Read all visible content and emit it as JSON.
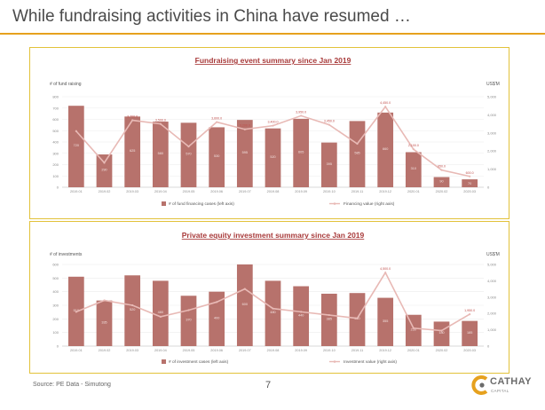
{
  "page": {
    "title": "While fundraising activities in China have resumed …",
    "source": "Source: PE Data - Simutong",
    "page_number": "7",
    "logo_text": "CATHAY",
    "logo_sub": "CAPITAL"
  },
  "colors": {
    "accent": "#e6a11e",
    "panel_border": "#e2c23a",
    "bar": "#b7726c",
    "line": "#e8b9b5",
    "chart_title": "#a83a3a"
  },
  "chart_data": [
    {
      "type": "bar",
      "title": "Fundraising event summary since Jan 2019",
      "ylabel_left": "# of fund raising",
      "ylabel_right": "US$'M",
      "categories": [
        "2019.01",
        "2019.02",
        "2019.03",
        "2019.04",
        "2019.05",
        "2019.06",
        "2019.07",
        "2019.08",
        "2019.09",
        "2019.10",
        "2019.11",
        "2019.12",
        "2020.01",
        "2020.02",
        "2020.03"
      ],
      "ylim_left": [
        0,
        800
      ],
      "ylim_right": [
        0,
        5000
      ],
      "left_ticks": [
        0,
        100,
        200,
        300,
        400,
        500,
        600,
        700,
        800
      ],
      "right_ticks": [
        0,
        1000,
        2000,
        3000,
        4000,
        5000
      ],
      "legend_position": "bottom",
      "series": [
        {
          "name": "# of fund financing cases (left axis)",
          "type": "bar",
          "axis": "left",
          "values": [
            720,
            290,
            625,
            580,
            570,
            530,
            595,
            520,
            605,
            395,
            585,
            660,
            310,
            90,
            70
          ],
          "labels": [
            "720",
            "290",
            "625",
            "580",
            "570",
            "530",
            "595",
            "520",
            "605",
            "395",
            "585",
            "660",
            "310",
            "90",
            "70"
          ]
        },
        {
          "name": "Financing value (right axis)",
          "type": "line",
          "axis": "right",
          "values": [
            3100,
            1350,
            3700,
            3500,
            2250,
            3600,
            3200,
            3400,
            3950,
            3450,
            2400,
            4450,
            2100,
            950,
            600
          ],
          "labels": [
            "",
            "",
            "3,700.0",
            "3,500.0",
            "",
            "3,600.0",
            "3,200.0",
            "3,400.0",
            "3,950.0",
            "3,450.0",
            "",
            "4,450.0",
            "2,100.0",
            "950.0",
            "600.0"
          ]
        }
      ]
    },
    {
      "type": "bar",
      "title": "Private equity investment summary since Jan 2019",
      "ylabel_left": "# of investments",
      "ylabel_right": "US$'M",
      "categories": [
        "2019.01",
        "2019.02",
        "2019.03",
        "2019.04",
        "2019.05",
        "2019.06",
        "2019.07",
        "2019.08",
        "2019.09",
        "2019.10",
        "2019.11",
        "2019.12",
        "2020.01",
        "2020.02",
        "2020.03"
      ],
      "ylim_left": [
        0,
        600
      ],
      "ylim_right": [
        0,
        5000
      ],
      "left_ticks": [
        0,
        100,
        200,
        300,
        400,
        500,
        600
      ],
      "right_ticks": [
        0,
        1000,
        2000,
        3000,
        4000,
        5000
      ],
      "legend_position": "bottom",
      "series": [
        {
          "name": "# of investment cases (left axis)",
          "type": "bar",
          "axis": "left",
          "values": [
            510,
            335,
            520,
            480,
            370,
            400,
            600,
            480,
            440,
            385,
            390,
            355,
            230,
            180,
            185
          ],
          "labels": [
            "510",
            "335",
            "520",
            "480",
            "370",
            "400",
            "600",
            "480",
            "440",
            "385",
            "390",
            "355",
            "230",
            "180",
            "185"
          ]
        },
        {
          "name": "Investment value (right axis)",
          "type": "line",
          "axis": "right",
          "values": [
            2100,
            2800,
            2500,
            1800,
            2200,
            2700,
            3500,
            2300,
            2100,
            1900,
            1700,
            4500,
            1100,
            950,
            1950
          ],
          "labels": [
            "",
            "",
            "",
            "",
            "",
            "",
            "",
            "",
            "",
            "",
            "",
            "4,500.0",
            "",
            "",
            "1,950.0"
          ]
        }
      ]
    }
  ]
}
